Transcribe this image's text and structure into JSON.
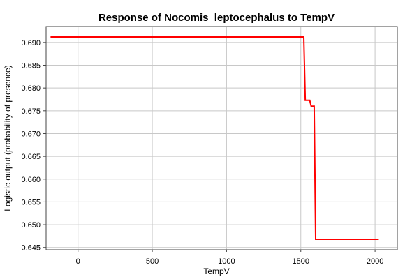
{
  "chart_data": {
    "type": "line",
    "title": "Response of Nocomis_leptocephalus to TempV",
    "xlabel": "TempV",
    "ylabel": "Logistic output (probability of presence)",
    "xlim": [
      -215,
      2150
    ],
    "ylim": [
      0.6445,
      0.6935
    ],
    "x_ticks": [
      0,
      500,
      1000,
      1500,
      2000
    ],
    "x_tick_labels": [
      "0",
      "500",
      "1000",
      "1500",
      "2000"
    ],
    "y_ticks": [
      0.645,
      0.65,
      0.655,
      0.66,
      0.665,
      0.67,
      0.675,
      0.68,
      0.685,
      0.69
    ],
    "y_tick_labels": [
      "0.645",
      "0.650",
      "0.655",
      "0.660",
      "0.665",
      "0.670",
      "0.675",
      "0.680",
      "0.685",
      "0.690"
    ],
    "grid": true,
    "series": [
      {
        "color": "#ff0000",
        "x": [
          -185,
          1520,
          1530,
          1560,
          1570,
          1590,
          1600,
          2025
        ],
        "y": [
          0.6912,
          0.6912,
          0.6773,
          0.6773,
          0.676,
          0.676,
          0.6468,
          0.6468
        ]
      }
    ]
  }
}
